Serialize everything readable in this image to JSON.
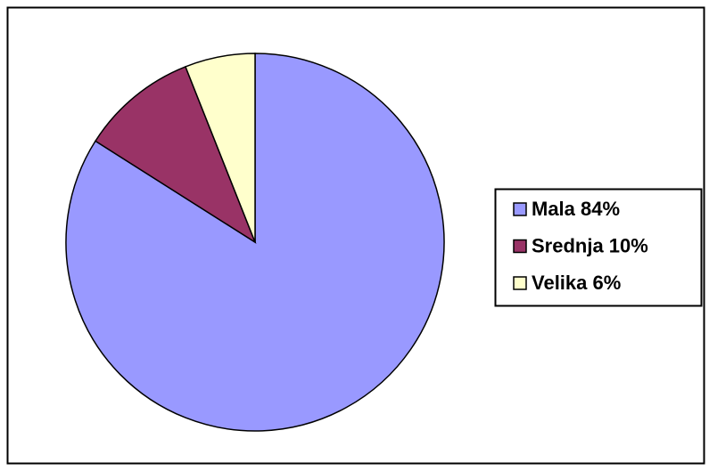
{
  "chart_data": {
    "type": "pie",
    "categories": [
      "Mala 84%",
      "Srednja 10%",
      "Velika 6%"
    ],
    "values": [
      84,
      10,
      6
    ],
    "colors": [
      "#9999ff",
      "#993366",
      "#ffffcc"
    ],
    "legend": "right"
  }
}
